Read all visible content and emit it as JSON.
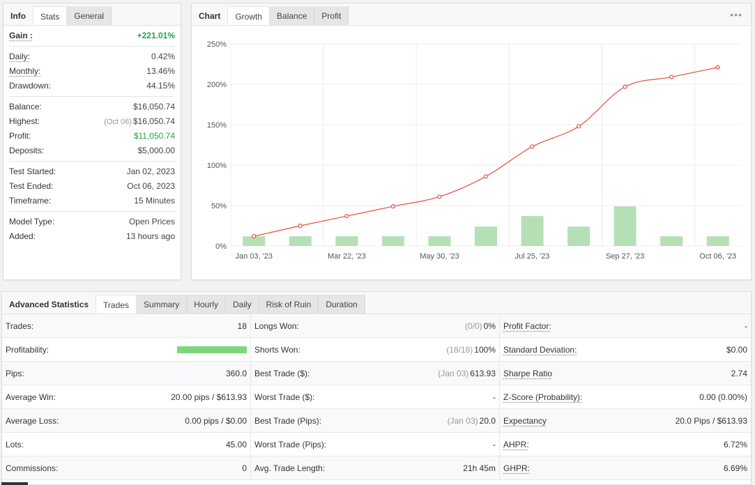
{
  "info": {
    "tabs": [
      "Info",
      "Stats",
      "General"
    ],
    "sections": [
      [
        {
          "label": "Gain :",
          "value": "+221.01%",
          "style": "gain"
        }
      ],
      [
        {
          "label": "Daily:",
          "value": "0.42%",
          "ul": true
        },
        {
          "label": "Monthly:",
          "value": "13.46%",
          "ul": true
        },
        {
          "label": "Drawdown:",
          "value": "44.15%"
        }
      ],
      [
        {
          "label": "Balance:",
          "value": "$16,050.74"
        },
        {
          "label": "Highest:",
          "note": "(Oct 06)",
          "value": "$16,050.74"
        },
        {
          "label": "Profit:",
          "value": "$11,050.74",
          "style": "green"
        },
        {
          "label": "Deposits:",
          "value": "$5,000.00"
        }
      ],
      [
        {
          "label": "Test Started:",
          "value": "Jan 02, 2023"
        },
        {
          "label": "Test Ended:",
          "value": "Oct 06, 2023"
        },
        {
          "label": "Timeframe:",
          "value": "15 Minutes"
        }
      ],
      [
        {
          "label": "Model Type:",
          "value": "Open Prices"
        },
        {
          "label": "Added:",
          "value": "13 hours ago"
        }
      ]
    ]
  },
  "chart_panel": {
    "tabs": [
      "Chart",
      "Growth",
      "Balance",
      "Profit"
    ],
    "more_icon": "more-dots-icon"
  },
  "chart_data": {
    "type": "line",
    "ylim": [
      0,
      250
    ],
    "yticks": [
      "0%",
      "50%",
      "100%",
      "150%",
      "200%",
      "250%"
    ],
    "xtick_labels": [
      "Jan 03, '23",
      "Mar 22, '23",
      "May 30, '23",
      "Jul 25, '23",
      "Sep 27, '23",
      "Oct 06, '23"
    ],
    "growth": [
      12,
      25,
      37,
      49,
      61,
      86,
      123,
      148,
      197,
      209,
      221
    ],
    "bars": [
      12,
      12,
      12,
      12,
      12,
      24,
      37,
      24,
      49,
      12,
      12
    ],
    "line_color": "#e74c3c",
    "bar_color": "#b5e0b5"
  },
  "adv": {
    "tabs": [
      "Advanced Statistics",
      "Trades",
      "Summary",
      "Hourly",
      "Daily",
      "Risk of Ruin",
      "Duration"
    ],
    "col1": [
      {
        "label": "Trades:",
        "value": "18"
      },
      {
        "label": "Profitability:",
        "bar": 1.0
      },
      {
        "label": "Pips:",
        "value": "360.0"
      },
      {
        "label": "Average Win:",
        "value": "20.00 pips / $613.93"
      },
      {
        "label": "Average Loss:",
        "value": "0.00 pips / $0.00"
      },
      {
        "label": "Lots:",
        "value": "45.00"
      },
      {
        "label": "Commissions:",
        "value": "0"
      }
    ],
    "col2": [
      {
        "label": "Longs Won:",
        "note": "(0/0)",
        "value": "0%"
      },
      {
        "label": "Shorts Won:",
        "note": "(18/18)",
        "value": "100%"
      },
      {
        "label": "Best Trade ($):",
        "note": "(Jan 03)",
        "value": "613.93"
      },
      {
        "label": "Worst Trade ($):",
        "value": "-"
      },
      {
        "label": "Best Trade (Pips):",
        "note": "(Jan 03)",
        "value": "20.0"
      },
      {
        "label": "Worst Trade (Pips):",
        "value": "-"
      },
      {
        "label": "Avg. Trade Length:",
        "value": "21h 45m"
      }
    ],
    "col3": [
      {
        "label": "Profit Factor:",
        "value": "-",
        "ul": true
      },
      {
        "label": "Standard Deviation:",
        "value": "$0.00",
        "ul": true
      },
      {
        "label": "Sharpe Ratio",
        "value": "2.74",
        "ul": true
      },
      {
        "label": "Z-Score (Probability):",
        "value": "0.00 (0.00%)",
        "ul": true
      },
      {
        "label": "Expectancy",
        "value": "20.0 Pips / $613.93",
        "ul": true
      },
      {
        "label": "AHPR:",
        "value": "6.72%",
        "ul": true
      },
      {
        "label": "GHPR:",
        "value": "6.69%",
        "ul": true
      }
    ]
  }
}
